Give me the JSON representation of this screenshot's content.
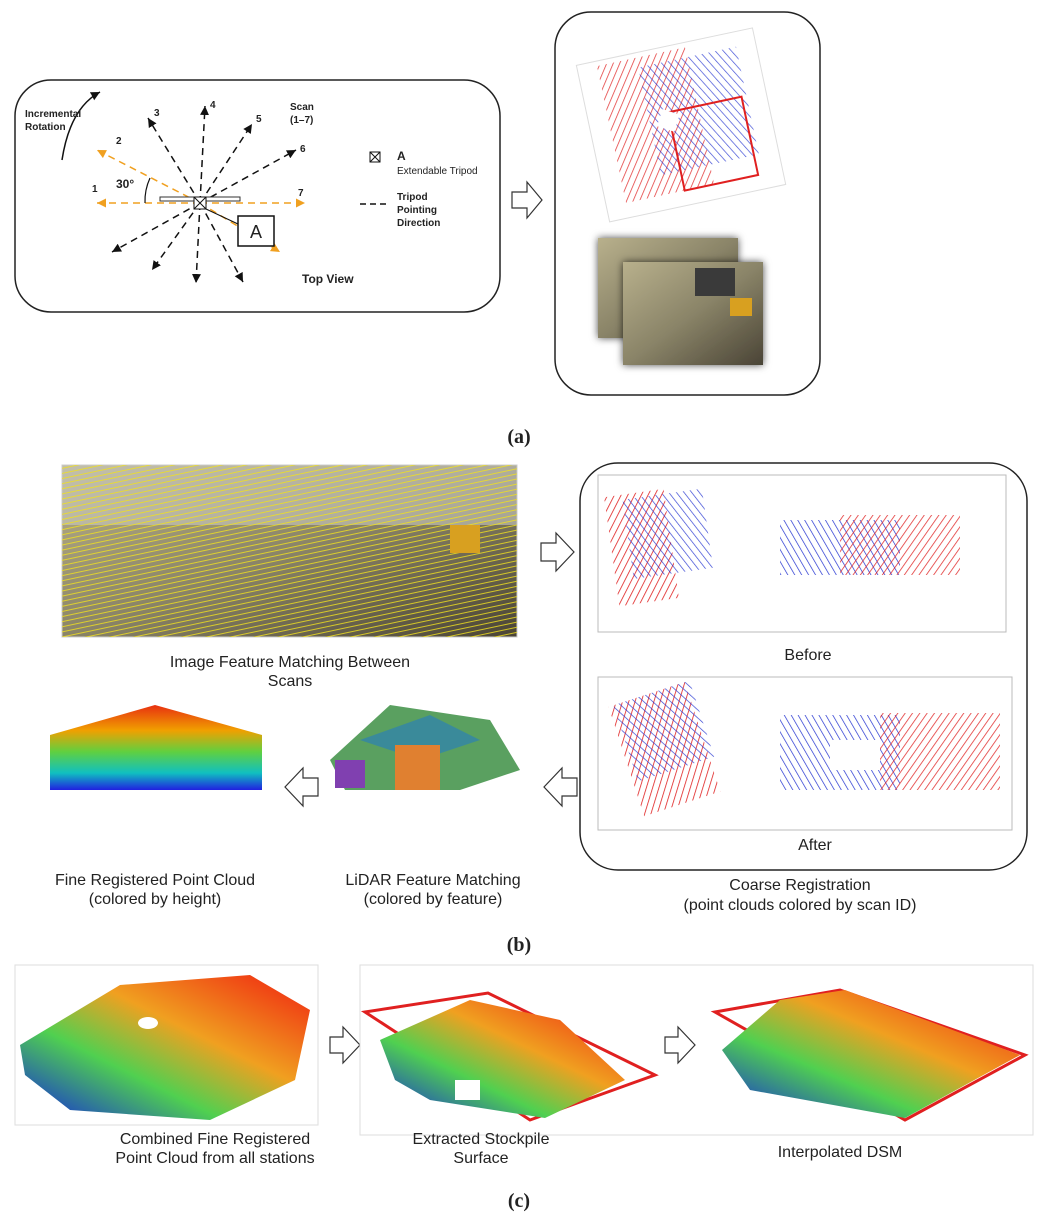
{
  "panel_a": {
    "rotation_label": [
      "Incremental",
      "Rotation"
    ],
    "scan_numbers": [
      "1",
      "2",
      "3",
      "4",
      "5",
      "6",
      "7"
    ],
    "scan_label": [
      "Scan",
      "(1–7)"
    ],
    "angle": "30°",
    "tripod_marker": "A",
    "legend_tripod_title": "A",
    "legend_tripod_text": "Extendable Tripod",
    "legend_arrow": [
      "Tripod",
      "Pointing",
      "Direction"
    ],
    "view_label": "Top View",
    "caption": "(a)"
  },
  "panel_b": {
    "image_matching": [
      "Image Feature Matching Between",
      "Scans"
    ],
    "before": "Before",
    "after": "After",
    "fine_registered": [
      "Fine Registered Point Cloud",
      "(colored by height)"
    ],
    "lidar_matching": [
      "LiDAR Feature Matching",
      "(colored by feature)"
    ],
    "coarse_registration": [
      "Coarse Registration",
      "(point clouds colored by scan ID)"
    ],
    "caption": "(b)"
  },
  "panel_c": {
    "combined": [
      "Combined Fine Registered",
      "Point Cloud from all stations"
    ],
    "extracted": [
      "Extracted Stockpile",
      "Surface"
    ],
    "dsm": "Interpolated DSM",
    "caption": "(c)"
  }
}
